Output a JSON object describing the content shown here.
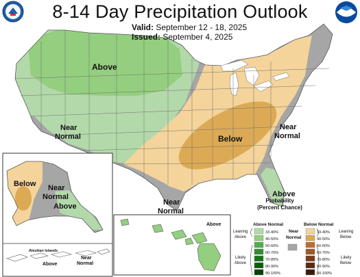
{
  "header": {
    "title": "8-14 Day Precipitation Outlook",
    "valid_label": "Valid:",
    "valid_value": "September 12 - 18, 2025",
    "issued_label": "Issued:",
    "issued_value": "September 4, 2025"
  },
  "map_labels": {
    "above_main": "Above",
    "near_normal_west_1": "Near",
    "near_normal_west_2": "Normal",
    "below_main": "Below",
    "near_normal_east_1": "Near",
    "near_normal_east_2": "Normal",
    "above_florida": "Above",
    "near_normal_south_1": "Near",
    "near_normal_south_2": "Normal",
    "alaska_below": "Below",
    "alaska_near_1": "Near",
    "alaska_near_2": "Normal",
    "alaska_above": "Above",
    "aleutian_title": "Aleutian Islands",
    "aleutian_above": "Above",
    "aleutian_near_1": "Near",
    "aleutian_near_2": "Normal",
    "hawaii_above": "Above"
  },
  "legend": {
    "title_1": "Probability",
    "title_2": "(Percent Chance)",
    "above_header": "Above Normal",
    "below_header": "Below Normal",
    "near_header_1": "Near",
    "near_header_2": "Normal",
    "leaning_above_1": "Leaning",
    "leaning_above_2": "Above",
    "likely_above_1": "Likely",
    "likely_above_2": "Above",
    "leaning_below_1": "Leaning",
    "leaning_below_2": "Below",
    "likely_below_1": "Likely",
    "likely_below_2": "Below",
    "ranges": [
      "33-40%",
      "40-50%",
      "50-60%",
      "60-70%",
      "70-80%",
      "80-90%",
      "90-100%"
    ],
    "above_colors": [
      "#b3d9ab",
      "#94ce7f",
      "#4fae49",
      "#2f8f2f",
      "#177617",
      "#0a5d0a",
      "#044204"
    ],
    "below_colors": [
      "#f4d49b",
      "#dcaa55",
      "#bb6d33",
      "#9b5a2a",
      "#7b3d18",
      "#5b2a10",
      "#3b1a08"
    ],
    "near_color": "#a6a6a6"
  },
  "colors": {
    "above_33_40": "#b3d9ab",
    "above_40_50": "#94ce7f",
    "below_33_40": "#f4d49b",
    "below_40_50": "#dcaa55",
    "near_normal": "#a6a6a6",
    "water": "#ffffff"
  },
  "logos": {
    "left": "noaa-dept-commerce-seal-icon",
    "right": "noaa-logo-icon"
  }
}
